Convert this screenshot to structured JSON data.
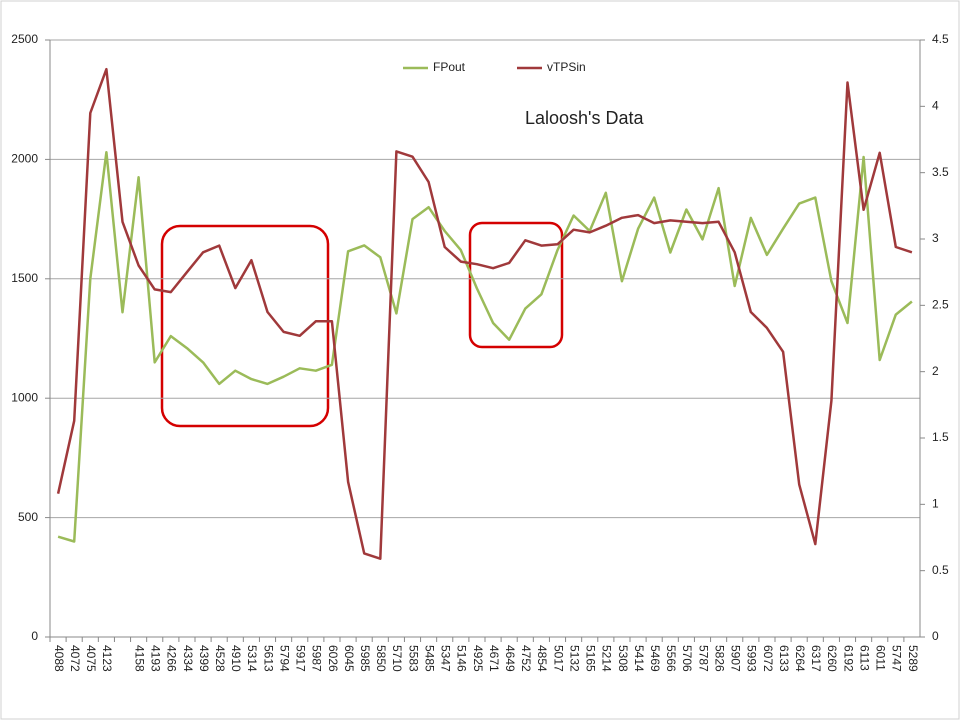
{
  "chart_data": {
    "type": "line",
    "annotation": "Laloosh's Data",
    "categories": [
      "4088",
      "4072",
      "4075",
      "4123",
      null,
      "4158",
      "4193",
      "4266",
      "4334",
      "4399",
      "4528",
      "4910",
      "5314",
      "5613",
      "5794",
      "5917",
      "5987",
      "6026",
      "6045",
      "5985",
      "5850",
      "5710",
      "5583",
      "5485",
      "5347",
      "5146",
      "4925",
      "4671",
      "4649",
      "4752",
      "4854",
      "5017",
      "5132",
      "5165",
      "5214",
      "5308",
      "5414",
      "5469",
      "5566",
      "5706",
      "5787",
      "5826",
      "5907",
      "5993",
      "6072",
      "6133",
      "6264",
      "6317",
      "6260",
      "6192",
      "6113",
      "6011",
      "5747",
      "5289"
    ],
    "series": [
      {
        "name": "FPout",
        "color": "#9bbb59",
        "values": [
          420,
          400,
          1500,
          2030,
          1360,
          1925,
          1150,
          1260,
          1210,
          1150,
          1060,
          1115,
          1080,
          1060,
          1090,
          1125,
          1115,
          1140,
          1615,
          1640,
          1590,
          1355,
          1750,
          1800,
          1700,
          1620,
          1460,
          1315,
          1245,
          1375,
          1435,
          1620,
          1765,
          1700,
          1860,
          1490,
          1710,
          1840,
          1610,
          1790,
          1665,
          1880,
          1470,
          1755,
          1600,
          1710,
          1815,
          1840,
          1490,
          1315,
          2010,
          1160,
          1350,
          1405
        ]
      },
      {
        "name": "vTPSin",
        "color": "#a0393b",
        "axis": "y2",
        "values": [
          1.08,
          1.63,
          3.95,
          4.28,
          3.13,
          2.8,
          2.62,
          2.6,
          2.75,
          2.9,
          2.95,
          2.63,
          2.84,
          2.45,
          2.3,
          2.27,
          2.38,
          2.38,
          1.17,
          0.63,
          0.59,
          3.66,
          3.62,
          3.43,
          2.94,
          2.83,
          2.81,
          2.78,
          2.82,
          2.99,
          2.95,
          2.96,
          3.07,
          3.05,
          3.1,
          3.16,
          3.18,
          3.12,
          3.14,
          3.13,
          3.12,
          3.13,
          2.9,
          2.45,
          2.33,
          2.15,
          1.15,
          0.7,
          1.78,
          4.18,
          3.22,
          3.65,
          2.94,
          2.9
        ]
      }
    ],
    "ylim": [
      0,
      2500
    ],
    "yticks": [
      0,
      500,
      1000,
      1500,
      2000,
      2500
    ],
    "y2lim": [
      0,
      4.5
    ],
    "y2ticks": [
      0,
      0.5,
      1,
      1.5,
      2,
      2.5,
      3,
      3.5,
      4,
      4.5
    ],
    "grid": true,
    "legend": "top"
  }
}
